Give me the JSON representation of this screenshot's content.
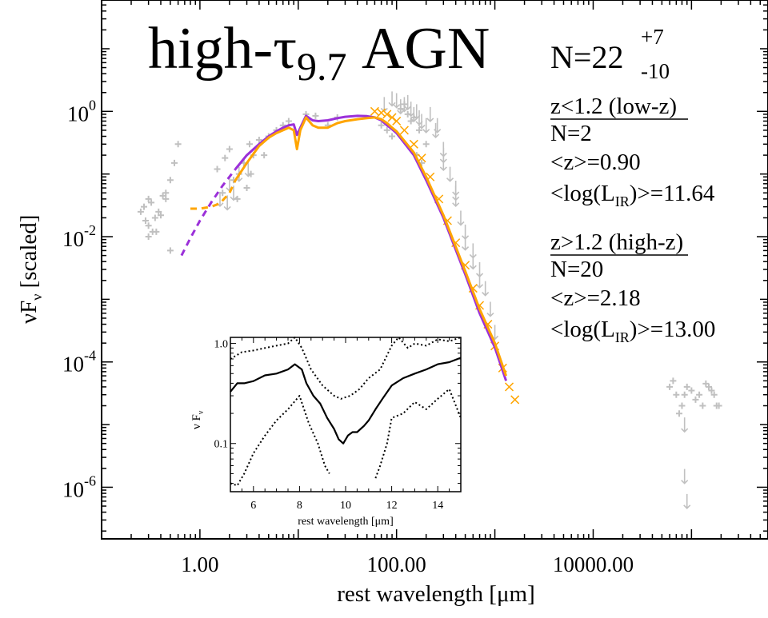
{
  "chart_data": [
    {
      "type": "scatter",
      "title": "high-τ9.7 AGN",
      "title_parts": {
        "main": "high-τ",
        "sub": "9.7",
        "tail": " AGN"
      },
      "count_label": {
        "main": "N=22",
        "sup": "+7",
        "sub": "-10"
      },
      "xlabel": "rest wavelength [μm]",
      "ylabel": {
        "main": "νF",
        "sub": "ν",
        "tail": " [scaled]"
      },
      "xscale": "log",
      "yscale": "log",
      "xlim": [
        0.1,
        600000
      ],
      "ylim": [
        1.5e-07,
        60
      ],
      "x_tick_labels": [
        {
          "value": 1,
          "label": "1.00"
        },
        {
          "value": 100,
          "label": "100.00"
        },
        {
          "value": 10000,
          "label": "10000.00"
        }
      ],
      "y_tick_labels": [
        {
          "value": 1,
          "base": "10",
          "exp": "0"
        },
        {
          "value": 0.01,
          "base": "10",
          "exp": "-2"
        },
        {
          "value": 0.0001,
          "base": "10",
          "exp": "-4"
        },
        {
          "value": 1e-06,
          "base": "10",
          "exp": "-6"
        }
      ],
      "legend_placement": "right",
      "groups": [
        {
          "header": "z<1.2 (low-z)",
          "n": "N=2",
          "z": "<z>=0.90",
          "lir": {
            "pre": "<log(L",
            "sub": "IR",
            "post": ")>=11.64"
          }
        },
        {
          "header": "z>1.2 (high-z)",
          "n": "N=20",
          "z": "<z>=2.18",
          "lir": {
            "pre": "<log(L",
            "sub": "IR",
            "post": ")>=13.00"
          }
        }
      ],
      "colors": {
        "low_z": "#9b30d9",
        "high_z": "#ffa500",
        "points": "#c0c0c0"
      },
      "series": [
        {
          "style": "purple-dashed",
          "x": [
            0.65,
            0.8,
            1.0,
            1.3,
            1.7,
            2.3
          ],
          "y": [
            0.005,
            0.0095,
            0.018,
            0.035,
            0.065,
            0.12
          ]
        },
        {
          "style": "purple-solid",
          "x": [
            2.3,
            3,
            4,
            5,
            6,
            7,
            8,
            9,
            9.7,
            10.5,
            12,
            14,
            16,
            20,
            25,
            30,
            40,
            50,
            60,
            70,
            80,
            90,
            100,
            150,
            200,
            300,
            500,
            700,
            1000,
            1300
          ],
          "y": [
            0.12,
            0.2,
            0.3,
            0.4,
            0.48,
            0.55,
            0.6,
            0.62,
            0.42,
            0.55,
            0.85,
            0.72,
            0.7,
            0.72,
            0.78,
            0.82,
            0.85,
            0.84,
            0.8,
            0.72,
            0.6,
            0.52,
            0.45,
            0.2,
            0.08,
            0.02,
            0.0025,
            0.0006,
            0.00017,
            5e-05
          ]
        },
        {
          "style": "orange-dashed",
          "x": [
            0.8,
            1.0,
            1.3,
            1.6,
            2.0,
            2.3
          ],
          "y": [
            0.028,
            0.028,
            0.03,
            0.034,
            0.05,
            0.08
          ]
        },
        {
          "style": "orange-solid",
          "x": [
            2.3,
            3,
            4,
            5,
            6,
            7,
            8,
            9,
            9.7,
            10.5,
            12,
            14,
            16,
            20,
            25,
            30,
            40,
            50,
            60,
            70,
            80,
            90,
            100,
            150,
            200,
            300,
            500,
            700,
            1000,
            1300
          ],
          "y": [
            0.08,
            0.15,
            0.28,
            0.38,
            0.45,
            0.5,
            0.55,
            0.5,
            0.25,
            0.5,
            0.8,
            0.6,
            0.55,
            0.55,
            0.65,
            0.7,
            0.75,
            0.78,
            0.8,
            0.75,
            0.65,
            0.55,
            0.48,
            0.22,
            0.09,
            0.022,
            0.0028,
            0.0007,
            0.0002,
            6e-05
          ]
        },
        {
          "style": "orange-x",
          "x": [
            60,
            70,
            80,
            90,
            100,
            120,
            150,
            180,
            220,
            270,
            330,
            400,
            500,
            600,
            700,
            850,
            1000,
            1200,
            1400,
            1600
          ],
          "y": [
            1.0,
            0.95,
            0.9,
            0.8,
            0.7,
            0.5,
            0.3,
            0.18,
            0.09,
            0.04,
            0.018,
            0.008,
            0.0035,
            0.0015,
            0.0008,
            0.0004,
            0.00018,
            8e-05,
            4e-05,
            2.5e-05
          ]
        },
        {
          "style": "gray-plus",
          "x": [
            0.25,
            0.27,
            0.3,
            0.32,
            0.35,
            0.3,
            0.33,
            0.28,
            0.38,
            0.42,
            0.45,
            0.5,
            0.55,
            0.6,
            0.4,
            0.5,
            0.3,
            0.45,
            0.36,
            1.5,
            1.8,
            2.0,
            2.5,
            3.0,
            3.5,
            4.0,
            5.0,
            6.0,
            7.0,
            2.2,
            2.8,
            3.2,
            4.5,
            1.7,
            2.4,
            3.3,
            8,
            12,
            15,
            20,
            25,
            110,
            120,
            130,
            150,
            170,
            200,
            160,
            140,
            180,
            90,
            80,
            70,
            60000,
            70000,
            80000,
            90000,
            100000,
            120000,
            130000,
            150000,
            170000,
            190000,
            65000,
            75000,
            85000,
            110000,
            140000,
            160000,
            180000
          ],
          "y": [
            0.025,
            0.03,
            0.04,
            0.035,
            0.02,
            0.015,
            0.012,
            0.018,
            0.025,
            0.045,
            0.05,
            0.08,
            0.15,
            0.3,
            0.022,
            0.006,
            0.01,
            0.04,
            0.012,
            0.12,
            0.18,
            0.25,
            0.1,
            0.06,
            0.2,
            0.35,
            0.4,
            0.5,
            0.6,
            0.08,
            0.15,
            0.3,
            0.2,
            0.05,
            0.04,
            0.1,
            0.7,
            0.9,
            0.85,
            0.6,
            0.8,
            1.1,
            1.3,
            0.9,
            0.8,
            0.5,
            0.3,
            0.2,
            0.7,
            0.15,
            0.4,
            0.5,
            0.6,
            4e-05,
            3e-05,
            2e-05,
            4e-05,
            3.5e-05,
            3e-05,
            2e-05,
            4e-05,
            3e-05,
            2e-05,
            5e-05,
            1.5e-05,
            3e-05,
            2.5e-05,
            4.5e-05,
            3.5e-05,
            2e-05
          ]
        },
        {
          "style": "gray-upper-limit",
          "x": [
            1.6,
            2.0,
            2.5,
            3.1,
            2.2,
            1.9,
            100,
            110,
            120,
            130,
            140,
            150,
            160,
            170,
            180,
            200,
            250,
            300,
            350,
            400,
            450,
            500,
            600,
            700,
            800,
            900,
            1000,
            300,
            400,
            500,
            600,
            700,
            300,
            400,
            220,
            260,
            90,
            75,
            85000,
            85000,
            90000
          ],
          "y": [
            0.04,
            0.07,
            0.1,
            0.12,
            0.05,
            0.035,
            1.5,
            1.2,
            1.3,
            1.4,
            1.1,
            0.9,
            1.0,
            0.8,
            0.7,
            0.6,
            0.5,
            0.2,
            0.1,
            0.05,
            0.02,
            0.012,
            0.006,
            0.003,
            0.0015,
            0.0007,
            0.0003,
            0.15,
            0.04,
            0.008,
            0.004,
            0.002,
            0.25,
            0.06,
            0.9,
            0.6,
            1.6,
            1.3,
            1e-05,
            1.5e-06,
            6e-07
          ]
        }
      ]
    },
    {
      "type": "line",
      "xlabel": "rest wavelength [μm]",
      "ylabel": {
        "main": "ν F",
        "sub": "ν"
      },
      "xscale": "linear",
      "yscale": "log",
      "xlim": [
        5,
        15
      ],
      "ylim": [
        0.033,
        1.15
      ],
      "x_ticks": [
        6,
        8,
        10,
        12,
        14
      ],
      "y_tick_labels": [
        {
          "value": 1.0,
          "label": "1.0"
        },
        {
          "value": 0.1,
          "label": "0.1"
        }
      ],
      "series": [
        {
          "style": "solid",
          "x": [
            5,
            5.3,
            5.6,
            6,
            6.5,
            7,
            7.5,
            7.8,
            8.1,
            8.3,
            8.6,
            8.9,
            9.2,
            9.5,
            9.7,
            9.9,
            10.1,
            10.3,
            10.5,
            10.8,
            11,
            11.3,
            11.6,
            12,
            12.5,
            13,
            13.5,
            14,
            14.5,
            15
          ],
          "y": [
            0.33,
            0.4,
            0.4,
            0.42,
            0.48,
            0.5,
            0.55,
            0.62,
            0.55,
            0.4,
            0.3,
            0.25,
            0.18,
            0.14,
            0.11,
            0.1,
            0.12,
            0.13,
            0.13,
            0.15,
            0.17,
            0.22,
            0.28,
            0.38,
            0.45,
            0.5,
            0.55,
            0.62,
            0.65,
            0.72
          ]
        },
        {
          "style": "dotted",
          "x": [
            5,
            5.5,
            6,
            6.5,
            7,
            7.5,
            7.8,
            8.1,
            8.5,
            9,
            9.5,
            9.8,
            10.2,
            10.6,
            11,
            11.5,
            12,
            12.3,
            12.7,
            13,
            13.5,
            14,
            14.5,
            15
          ],
          "y": [
            0.7,
            0.82,
            0.85,
            0.9,
            0.95,
            1.0,
            1.15,
            0.9,
            0.55,
            0.38,
            0.3,
            0.28,
            0.3,
            0.35,
            0.45,
            0.55,
            0.95,
            1.15,
            0.9,
            1.0,
            0.95,
            1.1,
            1.05,
            1.15
          ]
        },
        {
          "style": "dotted",
          "x": [
            5,
            5.3,
            5.6,
            6,
            6.5,
            7,
            7.5,
            8,
            8.4,
            8.8,
            9.1,
            9.3
          ],
          "y": [
            0.04,
            0.038,
            0.05,
            0.08,
            0.12,
            0.17,
            0.22,
            0.3,
            0.16,
            0.1,
            0.06,
            0.05
          ]
        },
        {
          "style": "dotted",
          "x": [
            11.3,
            11.5,
            11.8,
            12,
            12.5,
            13,
            13.5,
            14,
            14.5,
            15
          ],
          "y": [
            0.045,
            0.06,
            0.1,
            0.18,
            0.2,
            0.26,
            0.22,
            0.28,
            0.35,
            0.18
          ]
        }
      ]
    }
  ]
}
